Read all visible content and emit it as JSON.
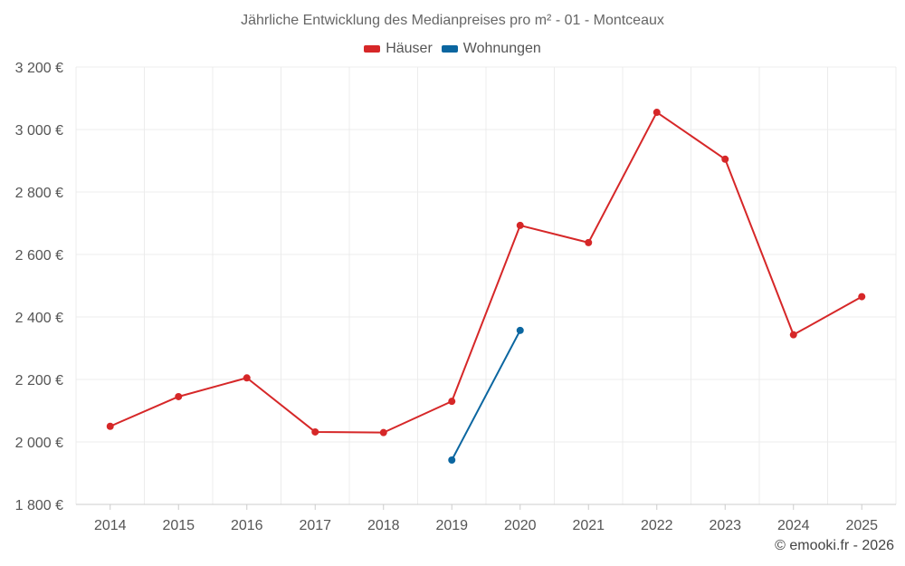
{
  "title": "Jährliche Entwicklung des Medianpreises pro m² - 01 - Montceaux",
  "credit": "© emooki.fr - 2026",
  "chart_data": {
    "type": "line",
    "title": "Jährliche Entwicklung des Medianpreises pro m² - 01 - Montceaux",
    "x": [
      2014,
      2015,
      2016,
      2017,
      2018,
      2019,
      2020,
      2021,
      2022,
      2023,
      2024,
      2025
    ],
    "x_tick_labels": [
      "2014",
      "2015",
      "2016",
      "2017",
      "2018",
      "2019",
      "2020",
      "2021",
      "2022",
      "2023",
      "2024",
      "2025"
    ],
    "ylim": [
      1800,
      3200
    ],
    "y_ticks": [
      1800,
      2000,
      2200,
      2400,
      2600,
      2800,
      3000,
      3200
    ],
    "y_tick_labels": [
      "1 800 €",
      "2 000 €",
      "2 200 €",
      "2 400 €",
      "2 600 €",
      "2 800 €",
      "3 000 €",
      "3 200 €"
    ],
    "grid": true,
    "legend_position": "top-center",
    "series": [
      {
        "name": "Häuser",
        "color": "#d62728",
        "values": [
          2050,
          2145,
          2205,
          2032,
          2030,
          2130,
          2693,
          2638,
          3055,
          2905,
          2343,
          2465
        ]
      },
      {
        "name": "Wohnungen",
        "color": "#0b66a0",
        "values": [
          null,
          null,
          null,
          null,
          null,
          1942,
          2357,
          null,
          null,
          null,
          null,
          null
        ]
      }
    ]
  }
}
